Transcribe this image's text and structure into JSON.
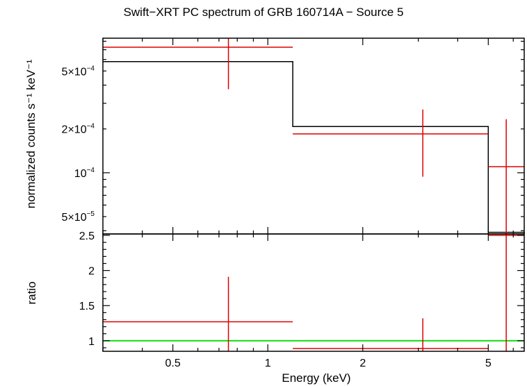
{
  "chart_data": {
    "title": "Swift−XRT PC spectrum of GRB 160714A − Source 5",
    "x_axis": {
      "label": "Energy (keV)",
      "scale": "log",
      "range": [
        0.3,
        6.5
      ],
      "ticks": [
        {
          "value": 0.5,
          "label": "0.5"
        },
        {
          "value": 1,
          "label": "1"
        },
        {
          "value": 2,
          "label": "2"
        },
        {
          "value": 5,
          "label": "5"
        }
      ]
    },
    "panels": [
      {
        "type": "line",
        "y_axis": {
          "label": "normalized counts s⁻¹ keV⁻¹",
          "scale": "log",
          "range": [
            3.8e-05,
            0.00084
          ],
          "ticks": [
            {
              "value": 5e-05,
              "mantissa": "5×10",
              "exp": "−5"
            },
            {
              "value": 0.0001,
              "mantissa": "10",
              "exp": "−4"
            },
            {
              "value": 0.0002,
              "mantissa": "2×10",
              "exp": "−4"
            },
            {
              "value": 0.0005,
              "mantissa": "5×10",
              "exp": "−4"
            }
          ]
        },
        "model": {
          "color": "#000000",
          "steps": [
            {
              "x0": 0.3,
              "x1": 1.2,
              "y": 0.00058
            },
            {
              "x0": 1.2,
              "x1": 5.0,
              "y": 0.000208
            },
            {
              "x0": 5.0,
              "x1": 6.5,
              "y": 3.9e-05
            }
          ]
        },
        "data": {
          "color": "#dd0000",
          "points": [
            {
              "x": 0.75,
              "xlo": 0.3,
              "xhi": 1.2,
              "y": 0.000728,
              "ylo": 0.000375,
              "yhi": 0.00084
            },
            {
              "x": 3.1,
              "xlo": 1.2,
              "xhi": 5.0,
              "y": 0.000185,
              "ylo": 9.4e-05,
              "yhi": 0.000272
            },
            {
              "x": 5.7,
              "xlo": 5.0,
              "xhi": 6.5,
              "y": 0.00011,
              "ylo": 3.8e-05,
              "yhi": 0.000233
            }
          ]
        }
      },
      {
        "type": "line",
        "y_axis": {
          "label": "ratio",
          "scale": "linear",
          "range": [
            0.85,
            2.52
          ],
          "ticks": [
            {
              "value": 1,
              "label": "1"
            },
            {
              "value": 1.5,
              "label": "1.5"
            },
            {
              "value": 2,
              "label": "2"
            },
            {
              "value": 2.5,
              "label": "2.5"
            }
          ]
        },
        "reference_line": {
          "y": 1,
          "color": "#00dd00"
        },
        "data": {
          "color": "#dd0000",
          "points": [
            {
              "x": 0.75,
              "xlo": 0.3,
              "xhi": 1.2,
              "y": 1.27,
              "ylo": 0.85,
              "yhi": 1.91
            },
            {
              "x": 3.1,
              "xlo": 1.2,
              "xhi": 5.0,
              "y": 0.89,
              "ylo": 0.85,
              "yhi": 1.32
            },
            {
              "x": 5.7,
              "xlo": 5.0,
              "xhi": 6.5,
              "y": 2.52,
              "ylo": 0.85,
              "yhi": 2.52
            }
          ]
        }
      }
    ]
  }
}
